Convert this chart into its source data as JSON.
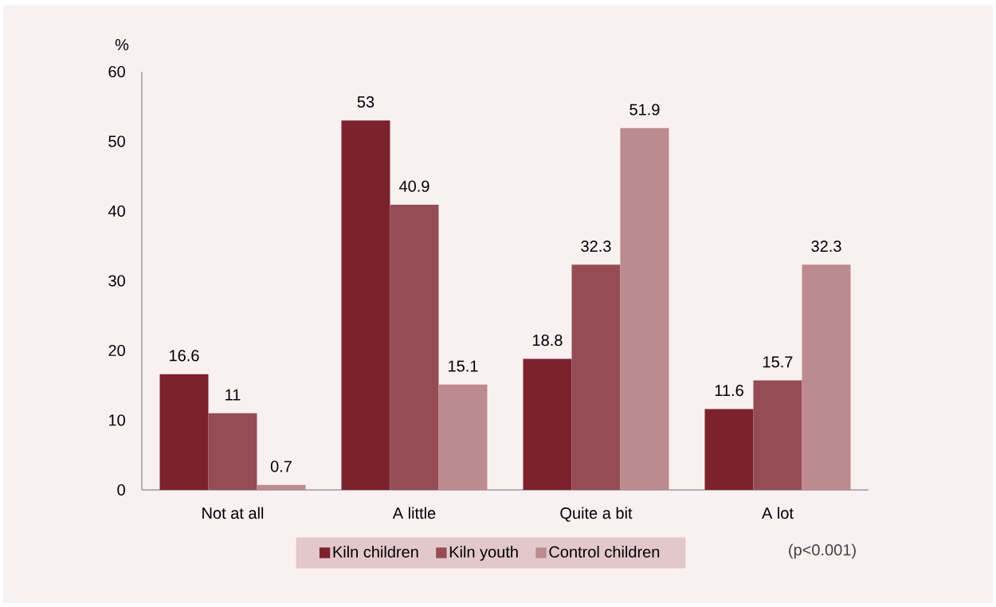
{
  "chart_data": {
    "type": "bar",
    "ylabel": "%",
    "categories": [
      "Not at all",
      "A little",
      "Quite a bit",
      "A lot"
    ],
    "series": [
      {
        "name": "Kiln children",
        "color": "#7b222d",
        "values": [
          16.6,
          53,
          18.8,
          11.6
        ]
      },
      {
        "name": "Kiln youth",
        "color": "#954c55",
        "values": [
          11,
          40.9,
          32.3,
          15.7
        ]
      },
      {
        "name": "Control children",
        "color": "#bd8a8e",
        "values": [
          0.7,
          15.1,
          51.9,
          32.3
        ]
      }
    ],
    "ylim": [
      0,
      60
    ],
    "yticks": [
      0,
      10,
      20,
      30,
      40,
      50,
      60
    ],
    "data_labels": true,
    "legend": "bottom",
    "annotations": [
      "(p<0.001)"
    ]
  }
}
